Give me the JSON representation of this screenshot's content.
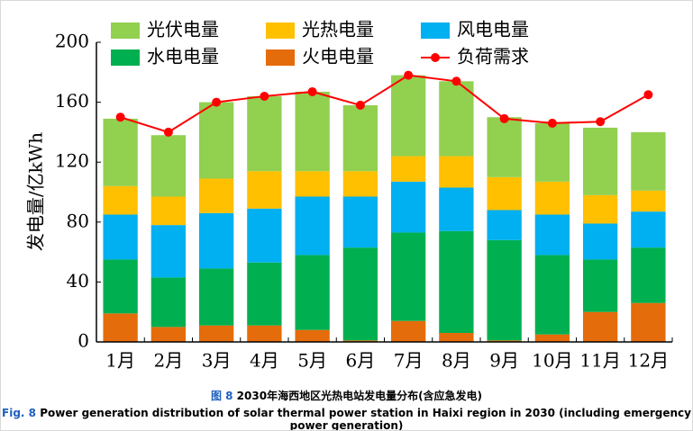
{
  "chart_data": {
    "type": "stacked_bar_line",
    "y_label": "发电量/亿kWh",
    "categories": [
      "1月",
      "2月",
      "3月",
      "4月",
      "5月",
      "6月",
      "7月",
      "8月",
      "9月",
      "10月",
      "11月",
      "12月"
    ],
    "series": [
      {
        "name": "光伏电量",
        "color": "#92d050",
        "values": [
          45,
          41,
          51,
          50,
          53,
          44,
          54,
          50,
          40,
          39,
          45,
          39
        ]
      },
      {
        "name": "光热电量",
        "color": "#ffc000",
        "values": [
          19,
          19,
          23,
          25,
          17,
          17,
          17,
          21,
          22,
          22,
          19,
          14
        ]
      },
      {
        "name": "风电电量",
        "color": "#00b0f0",
        "values": [
          30,
          35,
          37,
          36,
          39,
          34,
          34,
          29,
          20,
          27,
          24,
          24
        ]
      },
      {
        "name": "水电电量",
        "color": "#00b050",
        "values": [
          36,
          33,
          38,
          42,
          50,
          62,
          59,
          68,
          67,
          53,
          35,
          37
        ]
      },
      {
        "name": "火电电量",
        "color": "#e46c0a",
        "values": [
          19,
          10,
          11,
          11,
          8,
          1,
          14,
          6,
          1,
          5,
          20,
          26
        ]
      },
      {
        "name": "负荷需求",
        "color": "#ff0000",
        "type": "line",
        "values": [
          150,
          140,
          160,
          164,
          167,
          158,
          178,
          174,
          149,
          146,
          147,
          165
        ]
      }
    ],
    "ylim": [
      0,
      200
    ],
    "yticks": [
      0,
      40,
      80,
      120,
      160,
      200
    ]
  },
  "caption_cn": {
    "label": "图 8",
    "text": "2030年海西地区光热电站发电量分布(含应急发电)"
  },
  "caption_en": {
    "label": "Fig. 8",
    "text": "Power generation distribution of solar thermal power station in Haixi region in 2030 (including emergency power generation)"
  }
}
